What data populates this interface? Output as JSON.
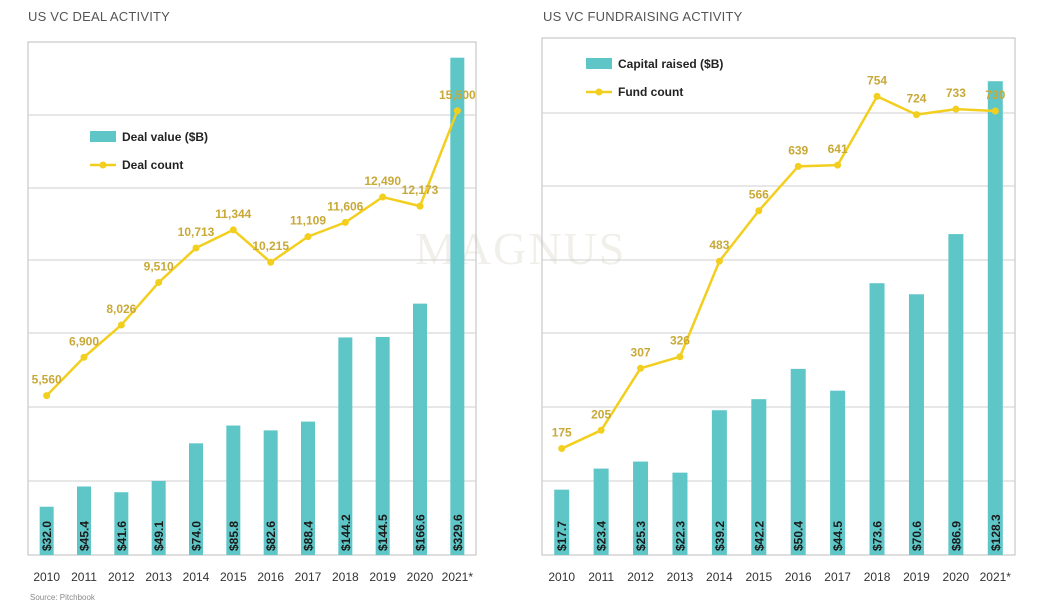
{
  "watermark": "MAGNUS",
  "source": "Source: Pitchbook",
  "colors": {
    "bar": "#5fc6c8",
    "line": "#f2cf1f",
    "label": "#c8a938",
    "grid": "#cfcfcf",
    "axis_text": "#333333"
  },
  "chart_data": [
    {
      "type": "bar",
      "title": "US VC DEAL ACTIVITY",
      "categories": [
        "2010",
        "2011",
        "2012",
        "2013",
        "2014",
        "2015",
        "2016",
        "2017",
        "2018",
        "2019",
        "2020",
        "2021*"
      ],
      "series": [
        {
          "name": "Deal value ($B)",
          "type": "bar",
          "axis": "left",
          "values": [
            32.0,
            45.4,
            41.6,
            49.1,
            74.0,
            85.8,
            82.6,
            88.4,
            144.2,
            144.5,
            166.6,
            329.6
          ],
          "labels": [
            "$32.0",
            "$45.4",
            "$41.6",
            "$49.1",
            "$74.0",
            "$85.8",
            "$82.6",
            "$88.4",
            "$144.2",
            "$144.5",
            "$166.6",
            "$329.6"
          ]
        },
        {
          "name": "Deal count",
          "type": "line",
          "axis": "right",
          "values": [
            5560,
            6900,
            8026,
            9510,
            10713,
            11344,
            10215,
            11109,
            11606,
            12490,
            12173,
            15500
          ],
          "labels": [
            "5,560",
            "6,900",
            "8,026",
            "9,510",
            "10,713",
            "11,344",
            "10,215",
            "11,109",
            "11,606",
            "12,490",
            "12,173",
            "15,500"
          ]
        }
      ],
      "bar_axis_range": [
        0,
        340
      ],
      "line_axis_range": [
        0,
        17900
      ],
      "grid": true,
      "legend_position": "top-left"
    },
    {
      "type": "bar",
      "title": "US VC FUNDRAISING ACTIVITY",
      "categories": [
        "2010",
        "2011",
        "2012",
        "2013",
        "2014",
        "2015",
        "2016",
        "2017",
        "2018",
        "2019",
        "2020",
        "2021*"
      ],
      "series": [
        {
          "name": "Capital raised ($B)",
          "type": "bar",
          "axis": "left",
          "values": [
            17.7,
            23.4,
            25.3,
            22.3,
            39.2,
            42.2,
            50.4,
            44.5,
            73.6,
            70.6,
            86.9,
            128.3
          ],
          "labels": [
            "$17.7",
            "$23.4",
            "$25.3",
            "$22.3",
            "$39.2",
            "$42.2",
            "$50.4",
            "$44.5",
            "$73.6",
            "$70.6",
            "$86.9",
            "$128.3"
          ]
        },
        {
          "name": "Fund count",
          "type": "line",
          "axis": "right",
          "values": [
            175,
            205,
            307,
            326,
            483,
            566,
            639,
            641,
            754,
            724,
            733,
            730
          ],
          "labels": [
            "175",
            "205",
            "307",
            "326",
            "483",
            "566",
            "639",
            "641",
            "754",
            "724",
            "733",
            "730"
          ]
        }
      ],
      "bar_axis_range": [
        0,
        140
      ],
      "line_axis_range": [
        0,
        850
      ],
      "grid": true,
      "legend_position": "top-left"
    }
  ]
}
